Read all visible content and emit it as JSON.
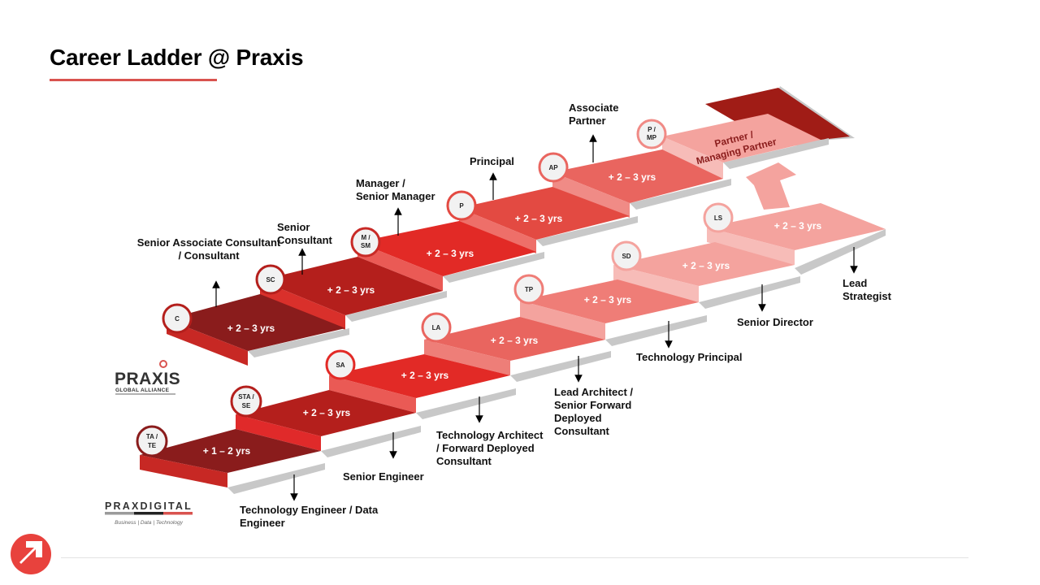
{
  "title": "Career Ladder @ Praxis",
  "colors": {
    "accent": "#d9534f",
    "dark_red": "#8a1c1c",
    "red": "#e02a2a",
    "light_red": "#f08a85",
    "pale_red": "#f5a8a3"
  },
  "top_track": {
    "steps": [
      {
        "badge": "C",
        "duration": "+ 2 – 3 yrs",
        "role": "Senior Associate Consultant / Consultant"
      },
      {
        "badge": "SC",
        "duration": "+ 2 – 3 yrs",
        "role": "Senior Consultant"
      },
      {
        "badge": "M / SM",
        "duration": "+ 2 – 3 yrs",
        "role": "Manager / Senior Manager"
      },
      {
        "badge": "P",
        "duration": "+ 2 – 3 yrs",
        "role": "Principal"
      },
      {
        "badge": "AP",
        "duration": "+ 2 – 3 yrs",
        "role": "Associate Partner"
      },
      {
        "badge": "P / MP",
        "duration": "Partner / Managing Partner",
        "role": ""
      }
    ]
  },
  "bottom_track": {
    "steps": [
      {
        "badge": "TA / TE",
        "duration": "+ 1 – 2 yrs",
        "role": "Technology Engineer / Data Engineer"
      },
      {
        "badge": "STA / SE",
        "duration": "+ 2 – 3 yrs",
        "role": "Senior Engineer"
      },
      {
        "badge": "SA",
        "duration": "+ 2 – 3 yrs",
        "role": "Technology Architect / Forward Deployed Consultant"
      },
      {
        "badge": "LA",
        "duration": "+ 2 – 3 yrs",
        "role": "Lead Architect / Senior Forward Deployed Consultant"
      },
      {
        "badge": "TP",
        "duration": "+ 2 – 3 yrs",
        "role": "Technology Principal"
      },
      {
        "badge": "SD",
        "duration": "+ 2 – 3 yrs",
        "role": "Senior Director"
      },
      {
        "badge": "LS",
        "duration": "+ 2 – 3 yrs",
        "role": "Lead Strategist"
      }
    ]
  },
  "logos": {
    "praxis_name": "PRAXIS",
    "praxis_tagline": "GLOBAL ALLIANCE",
    "digital_name": "PRAXDIGITAL",
    "digital_tagline": "Business | Data | Technology"
  }
}
